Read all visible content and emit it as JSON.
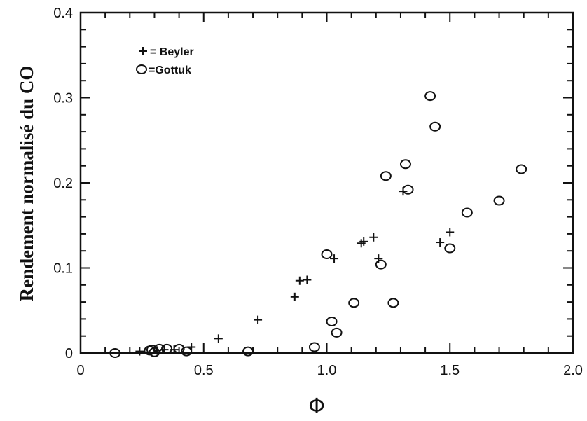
{
  "chart_data": {
    "type": "scatter",
    "title": "",
    "xlabel": "Φ",
    "ylabel": "Rendement normalisé du CO",
    "xlim": [
      0,
      2.0
    ],
    "ylim": [
      0,
      0.4
    ],
    "xticks": [
      "0",
      "0.5",
      "1.0",
      "1.5",
      "2.0"
    ],
    "yticks": [
      "0",
      "0.1",
      "0.2",
      "0.3",
      "0.4"
    ],
    "grid": false,
    "legend_position": "top-left",
    "series": [
      {
        "name": "Beyler",
        "legend_label": "= Beyler",
        "marker": "plus",
        "points": [
          [
            0.24,
            0.002
          ],
          [
            0.31,
            0.003
          ],
          [
            0.34,
            0.004
          ],
          [
            0.38,
            0.004
          ],
          [
            0.45,
            0.007
          ],
          [
            0.56,
            0.017
          ],
          [
            0.72,
            0.039
          ],
          [
            0.87,
            0.066
          ],
          [
            0.89,
            0.085
          ],
          [
            0.92,
            0.086
          ],
          [
            1.03,
            0.111
          ],
          [
            1.14,
            0.129
          ],
          [
            1.15,
            0.131
          ],
          [
            1.19,
            0.136
          ],
          [
            1.21,
            0.111
          ],
          [
            1.31,
            0.19
          ],
          [
            1.46,
            0.13
          ],
          [
            1.5,
            0.142
          ]
        ]
      },
      {
        "name": "Gottuk",
        "legend_label": "=Gottuk",
        "marker": "circle",
        "points": [
          [
            0.14,
            0.0
          ],
          [
            0.28,
            0.003
          ],
          [
            0.29,
            0.004
          ],
          [
            0.3,
            0.001
          ],
          [
            0.32,
            0.005
          ],
          [
            0.35,
            0.005
          ],
          [
            0.4,
            0.005
          ],
          [
            0.43,
            0.002
          ],
          [
            0.68,
            0.002
          ],
          [
            0.95,
            0.007
          ],
          [
            1.0,
            0.116
          ],
          [
            1.02,
            0.037
          ],
          [
            1.04,
            0.024
          ],
          [
            1.11,
            0.059
          ],
          [
            1.22,
            0.104
          ],
          [
            1.24,
            0.208
          ],
          [
            1.27,
            0.059
          ],
          [
            1.32,
            0.222
          ],
          [
            1.33,
            0.192
          ],
          [
            1.42,
            0.302
          ],
          [
            1.44,
            0.266
          ],
          [
            1.5,
            0.123
          ],
          [
            1.57,
            0.165
          ],
          [
            1.7,
            0.179
          ],
          [
            1.79,
            0.216
          ]
        ]
      }
    ]
  }
}
